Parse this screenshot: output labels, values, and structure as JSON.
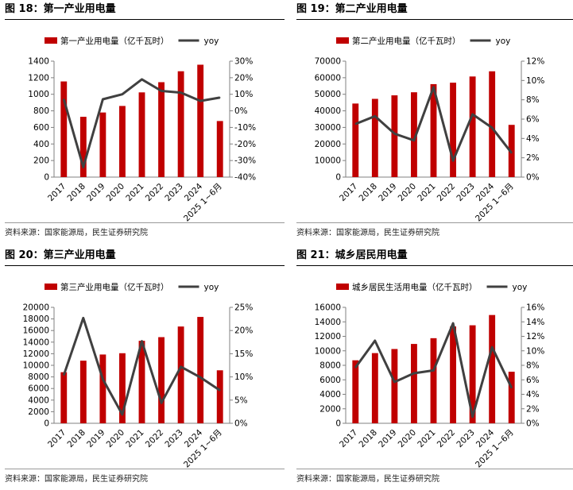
{
  "colors": {
    "bar": "#C00000",
    "line": "#404040",
    "axis": "#808080"
  },
  "chart_data": [
    {
      "type": "bar",
      "fig_title": "图 18：第一产业用电量",
      "source": "资料来源：国家能源局，民生证券研究院",
      "categories": [
        "2017",
        "2018",
        "2019",
        "2020",
        "2021",
        "2022",
        "2023",
        "2024",
        "2025 1~6月"
      ],
      "series": [
        {
          "name": "第一产业用电量（亿千瓦时）",
          "type": "bar",
          "axis": "left",
          "values": [
            1155,
            728,
            780,
            859,
            1023,
            1146,
            1278,
            1357,
            677
          ]
        },
        {
          "name": "yoy",
          "type": "line",
          "axis": "right",
          "values": [
            0.07,
            -0.34,
            0.07,
            0.1,
            0.19,
            0.12,
            0.11,
            0.06,
            0.08
          ]
        }
      ],
      "ylim": [
        0,
        1400
      ],
      "yticks": [
        0,
        200,
        400,
        600,
        800,
        1000,
        1200,
        1400
      ],
      "y2lim": [
        -0.4,
        0.3
      ],
      "y2ticks": [
        -0.4,
        -0.3,
        -0.2,
        -0.1,
        0,
        0.1,
        0.2,
        0.3
      ],
      "y2_tick_labels": [
        "-40%",
        "-30%",
        "-20%",
        "-10%",
        "0%",
        "10%",
        "20%",
        "30%"
      ],
      "legend": "top",
      "grid": false
    },
    {
      "type": "bar",
      "fig_title": "图 19：第二产业用电量",
      "source": "资料来源：国家能源局，民生证券研究院",
      "categories": [
        "2017",
        "2018",
        "2019",
        "2020",
        "2021",
        "2022",
        "2023",
        "2024",
        "2025 1~6月"
      ],
      "series": [
        {
          "name": "第二产业用电量（亿千瓦时）",
          "type": "bar",
          "axis": "left",
          "values": [
            44413,
            47235,
            49362,
            51215,
            56131,
            57001,
            60745,
            63874,
            31539
          ]
        },
        {
          "name": "yoy",
          "type": "line",
          "axis": "right",
          "values": [
            0.055,
            0.063,
            0.045,
            0.038,
            0.093,
            0.017,
            0.065,
            0.051,
            0.025
          ]
        }
      ],
      "ylim": [
        0,
        70000
      ],
      "yticks": [
        0,
        10000,
        20000,
        30000,
        40000,
        50000,
        60000,
        70000
      ],
      "y2lim": [
        0,
        0.12
      ],
      "y2ticks": [
        0,
        0.02,
        0.04,
        0.06,
        0.08,
        0.1,
        0.12
      ],
      "y2_tick_labels": [
        "0%",
        "2%",
        "4%",
        "6%",
        "8%",
        "10%",
        "12%"
      ],
      "legend": "top",
      "grid": false
    },
    {
      "type": "bar",
      "fig_title": "图 20：第三产业用电量",
      "source": "资料来源：国家能源局，民生证券研究院",
      "categories": [
        "2017",
        "2018",
        "2019",
        "2020",
        "2021",
        "2022",
        "2023",
        "2024",
        "2025 1~6月"
      ],
      "series": [
        {
          "name": "第三产业用电量（亿千瓦时）",
          "type": "bar",
          "axis": "left",
          "values": [
            8814,
            10801,
            11863,
            12087,
            14231,
            14859,
            16694,
            18348,
            9140
          ]
        },
        {
          "name": "yoy",
          "type": "line",
          "axis": "right",
          "values": [
            0.104,
            0.227,
            0.095,
            0.019,
            0.177,
            0.044,
            0.122,
            0.099,
            0.071
          ]
        }
      ],
      "ylim": [
        0,
        20000
      ],
      "yticks": [
        0,
        2000,
        4000,
        6000,
        8000,
        10000,
        12000,
        14000,
        16000,
        18000,
        20000
      ],
      "y2lim": [
        0,
        0.25
      ],
      "y2ticks": [
        0,
        0.05,
        0.1,
        0.15,
        0.2,
        0.25
      ],
      "y2_tick_labels": [
        "0%",
        "5%",
        "10%",
        "15%",
        "20%",
        "25%"
      ],
      "legend": "top",
      "grid": false
    },
    {
      "type": "bar",
      "fig_title": "图 21：城乡居民用电量",
      "source": "资料来源：国家能源局，民生证券研究院",
      "categories": [
        "2017",
        "2018",
        "2019",
        "2020",
        "2021",
        "2022",
        "2023",
        "2024",
        "2025 1~6月"
      ],
      "series": [
        {
          "name": "城乡居民生活用电量（亿千瓦时）",
          "type": "bar",
          "axis": "left",
          "values": [
            8695,
            9685,
            10250,
            10949,
            11743,
            13366,
            13524,
            14942,
            7115
          ]
        },
        {
          "name": "yoy",
          "type": "line",
          "axis": "right",
          "values": [
            0.077,
            0.114,
            0.057,
            0.069,
            0.073,
            0.138,
            0.009,
            0.105,
            0.049
          ]
        }
      ],
      "ylim": [
        0,
        16000
      ],
      "yticks": [
        0,
        2000,
        4000,
        6000,
        8000,
        10000,
        12000,
        14000,
        16000
      ],
      "y2lim": [
        0,
        0.16
      ],
      "y2ticks": [
        0,
        0.02,
        0.04,
        0.06,
        0.08,
        0.1,
        0.12,
        0.14,
        0.16
      ],
      "y2_tick_labels": [
        "0%",
        "2%",
        "4%",
        "6%",
        "8%",
        "10%",
        "12%",
        "14%",
        "16%"
      ],
      "legend": "top",
      "grid": false
    }
  ]
}
